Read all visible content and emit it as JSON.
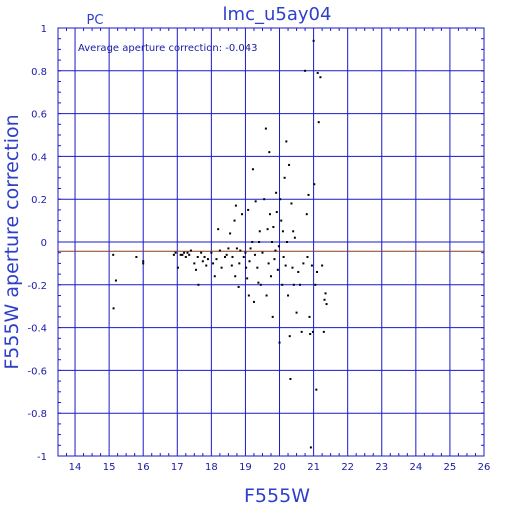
{
  "chart_data": {
    "type": "scatter",
    "title": "lmc_u5ay04",
    "corner_label": "PC",
    "annotation": "Average aperture correction: -0.043",
    "xlabel": "F555W",
    "ylabel": "F555W aperture correction",
    "xlim": [
      13.5,
      26
    ],
    "ylim": [
      -1,
      1
    ],
    "xticks": [
      "14",
      "15",
      "16",
      "17",
      "18",
      "19",
      "20",
      "21",
      "22",
      "23",
      "24",
      "25",
      "26"
    ],
    "yticks": [
      "1",
      "0.8",
      "0.6",
      "0.4",
      "0.2",
      "0",
      "-0.2",
      "-0.4",
      "-0.6",
      "-0.8",
      "-1"
    ],
    "grid": true,
    "reference_line": {
      "y": 0,
      "color": "#1a1acc"
    },
    "average_line": {
      "y": -0.043,
      "color": "#8b3a1a"
    },
    "colors": {
      "axes": "#1a1acc",
      "text": "#2e3fc9",
      "points": "#000000"
    },
    "points": [
      [
        15.12,
        -0.06
      ],
      [
        15.13,
        -0.31
      ],
      [
        15.2,
        -0.18
      ],
      [
        15.8,
        -0.07
      ],
      [
        16.0,
        -0.09
      ],
      [
        16.0,
        -0.1
      ],
      [
        16.9,
        -0.06
      ],
      [
        16.95,
        -0.05
      ],
      [
        17.02,
        -0.12
      ],
      [
        17.1,
        -0.06
      ],
      [
        17.15,
        -0.06
      ],
      [
        17.2,
        -0.05
      ],
      [
        17.25,
        -0.07
      ],
      [
        17.3,
        -0.05
      ],
      [
        17.35,
        -0.06
      ],
      [
        17.4,
        -0.04
      ],
      [
        17.5,
        -0.1
      ],
      [
        17.55,
        -0.13
      ],
      [
        17.6,
        -0.07
      ],
      [
        17.62,
        -0.2
      ],
      [
        17.7,
        -0.05
      ],
      [
        17.75,
        -0.09
      ],
      [
        17.8,
        -0.07
      ],
      [
        17.85,
        -0.11
      ],
      [
        17.9,
        -0.08
      ],
      [
        18.0,
        -0.05
      ],
      [
        18.05,
        -0.1
      ],
      [
        18.1,
        -0.16
      ],
      [
        18.15,
        -0.08
      ],
      [
        18.2,
        0.06
      ],
      [
        18.25,
        -0.04
      ],
      [
        18.3,
        -0.12
      ],
      [
        18.4,
        -0.07
      ],
      [
        18.45,
        -0.06
      ],
      [
        18.5,
        -0.03
      ],
      [
        18.55,
        0.04
      ],
      [
        18.6,
        -0.11
      ],
      [
        18.62,
        -0.07
      ],
      [
        18.68,
        0.1
      ],
      [
        18.7,
        -0.16
      ],
      [
        18.72,
        0.17
      ],
      [
        18.75,
        -0.03
      ],
      [
        18.8,
        -0.21
      ],
      [
        18.82,
        -0.1
      ],
      [
        18.85,
        -0.04
      ],
      [
        18.9,
        0.13
      ],
      [
        18.95,
        -0.07
      ],
      [
        19.0,
        -0.05
      ],
      [
        19.02,
        -0.12
      ],
      [
        19.05,
        -0.17
      ],
      [
        19.08,
        0.15
      ],
      [
        19.1,
        -0.25
      ],
      [
        19.12,
        -0.09
      ],
      [
        19.15,
        -0.03
      ],
      [
        19.2,
        0.0
      ],
      [
        19.22,
        0.34
      ],
      [
        19.25,
        -0.28
      ],
      [
        19.28,
        -0.06
      ],
      [
        19.3,
        0.19
      ],
      [
        19.35,
        -0.12
      ],
      [
        19.38,
        -0.19
      ],
      [
        19.4,
        0.0
      ],
      [
        19.42,
        0.05
      ],
      [
        19.45,
        -0.2
      ],
      [
        19.5,
        -0.05
      ],
      [
        19.55,
        0.2
      ],
      [
        19.6,
        0.53
      ],
      [
        19.62,
        -0.25
      ],
      [
        19.65,
        0.06
      ],
      [
        19.68,
        -0.1
      ],
      [
        19.7,
        0.42
      ],
      [
        19.72,
        0.13
      ],
      [
        19.75,
        -0.16
      ],
      [
        19.78,
        0.0
      ],
      [
        19.8,
        -0.35
      ],
      [
        19.82,
        0.07
      ],
      [
        19.85,
        -0.08
      ],
      [
        19.88,
        -0.04
      ],
      [
        19.9,
        0.23
      ],
      [
        19.92,
        0.14
      ],
      [
        19.95,
        -0.13
      ],
      [
        19.98,
        -0.02
      ],
      [
        20.0,
        -0.47
      ],
      [
        20.02,
        0.2
      ],
      [
        20.05,
        0.1
      ],
      [
        20.08,
        -0.2
      ],
      [
        20.1,
        0.05
      ],
      [
        20.12,
        -0.07
      ],
      [
        20.15,
        0.3
      ],
      [
        20.18,
        -0.11
      ],
      [
        20.2,
        0.47
      ],
      [
        20.22,
        0.0
      ],
      [
        20.25,
        -0.25
      ],
      [
        20.28,
        0.36
      ],
      [
        20.3,
        -0.44
      ],
      [
        20.32,
        -0.64
      ],
      [
        20.35,
        0.18
      ],
      [
        20.38,
        -0.12
      ],
      [
        20.4,
        0.05
      ],
      [
        20.42,
        -0.2
      ],
      [
        20.45,
        0.02
      ],
      [
        20.5,
        -0.33
      ],
      [
        20.55,
        -0.14
      ],
      [
        20.6,
        -0.2
      ],
      [
        20.65,
        -0.42
      ],
      [
        20.7,
        -0.1
      ],
      [
        20.75,
        0.8
      ],
      [
        20.8,
        0.13
      ],
      [
        20.82,
        -0.07
      ],
      [
        20.85,
        0.22
      ],
      [
        20.88,
        -0.35
      ],
      [
        20.9,
        -0.43
      ],
      [
        20.92,
        -0.96
      ],
      [
        20.95,
        -0.11
      ],
      [
        20.98,
        -0.42
      ],
      [
        21.0,
        0.94
      ],
      [
        21.02,
        0.27
      ],
      [
        21.05,
        -0.2
      ],
      [
        21.08,
        -0.69
      ],
      [
        21.1,
        -0.14
      ],
      [
        21.12,
        0.79
      ],
      [
        21.15,
        0.56
      ],
      [
        21.2,
        0.77
      ],
      [
        21.25,
        -0.11
      ],
      [
        21.3,
        -0.42
      ],
      [
        21.32,
        -0.27
      ],
      [
        21.35,
        -0.24
      ],
      [
        21.38,
        -0.29
      ]
    ]
  }
}
